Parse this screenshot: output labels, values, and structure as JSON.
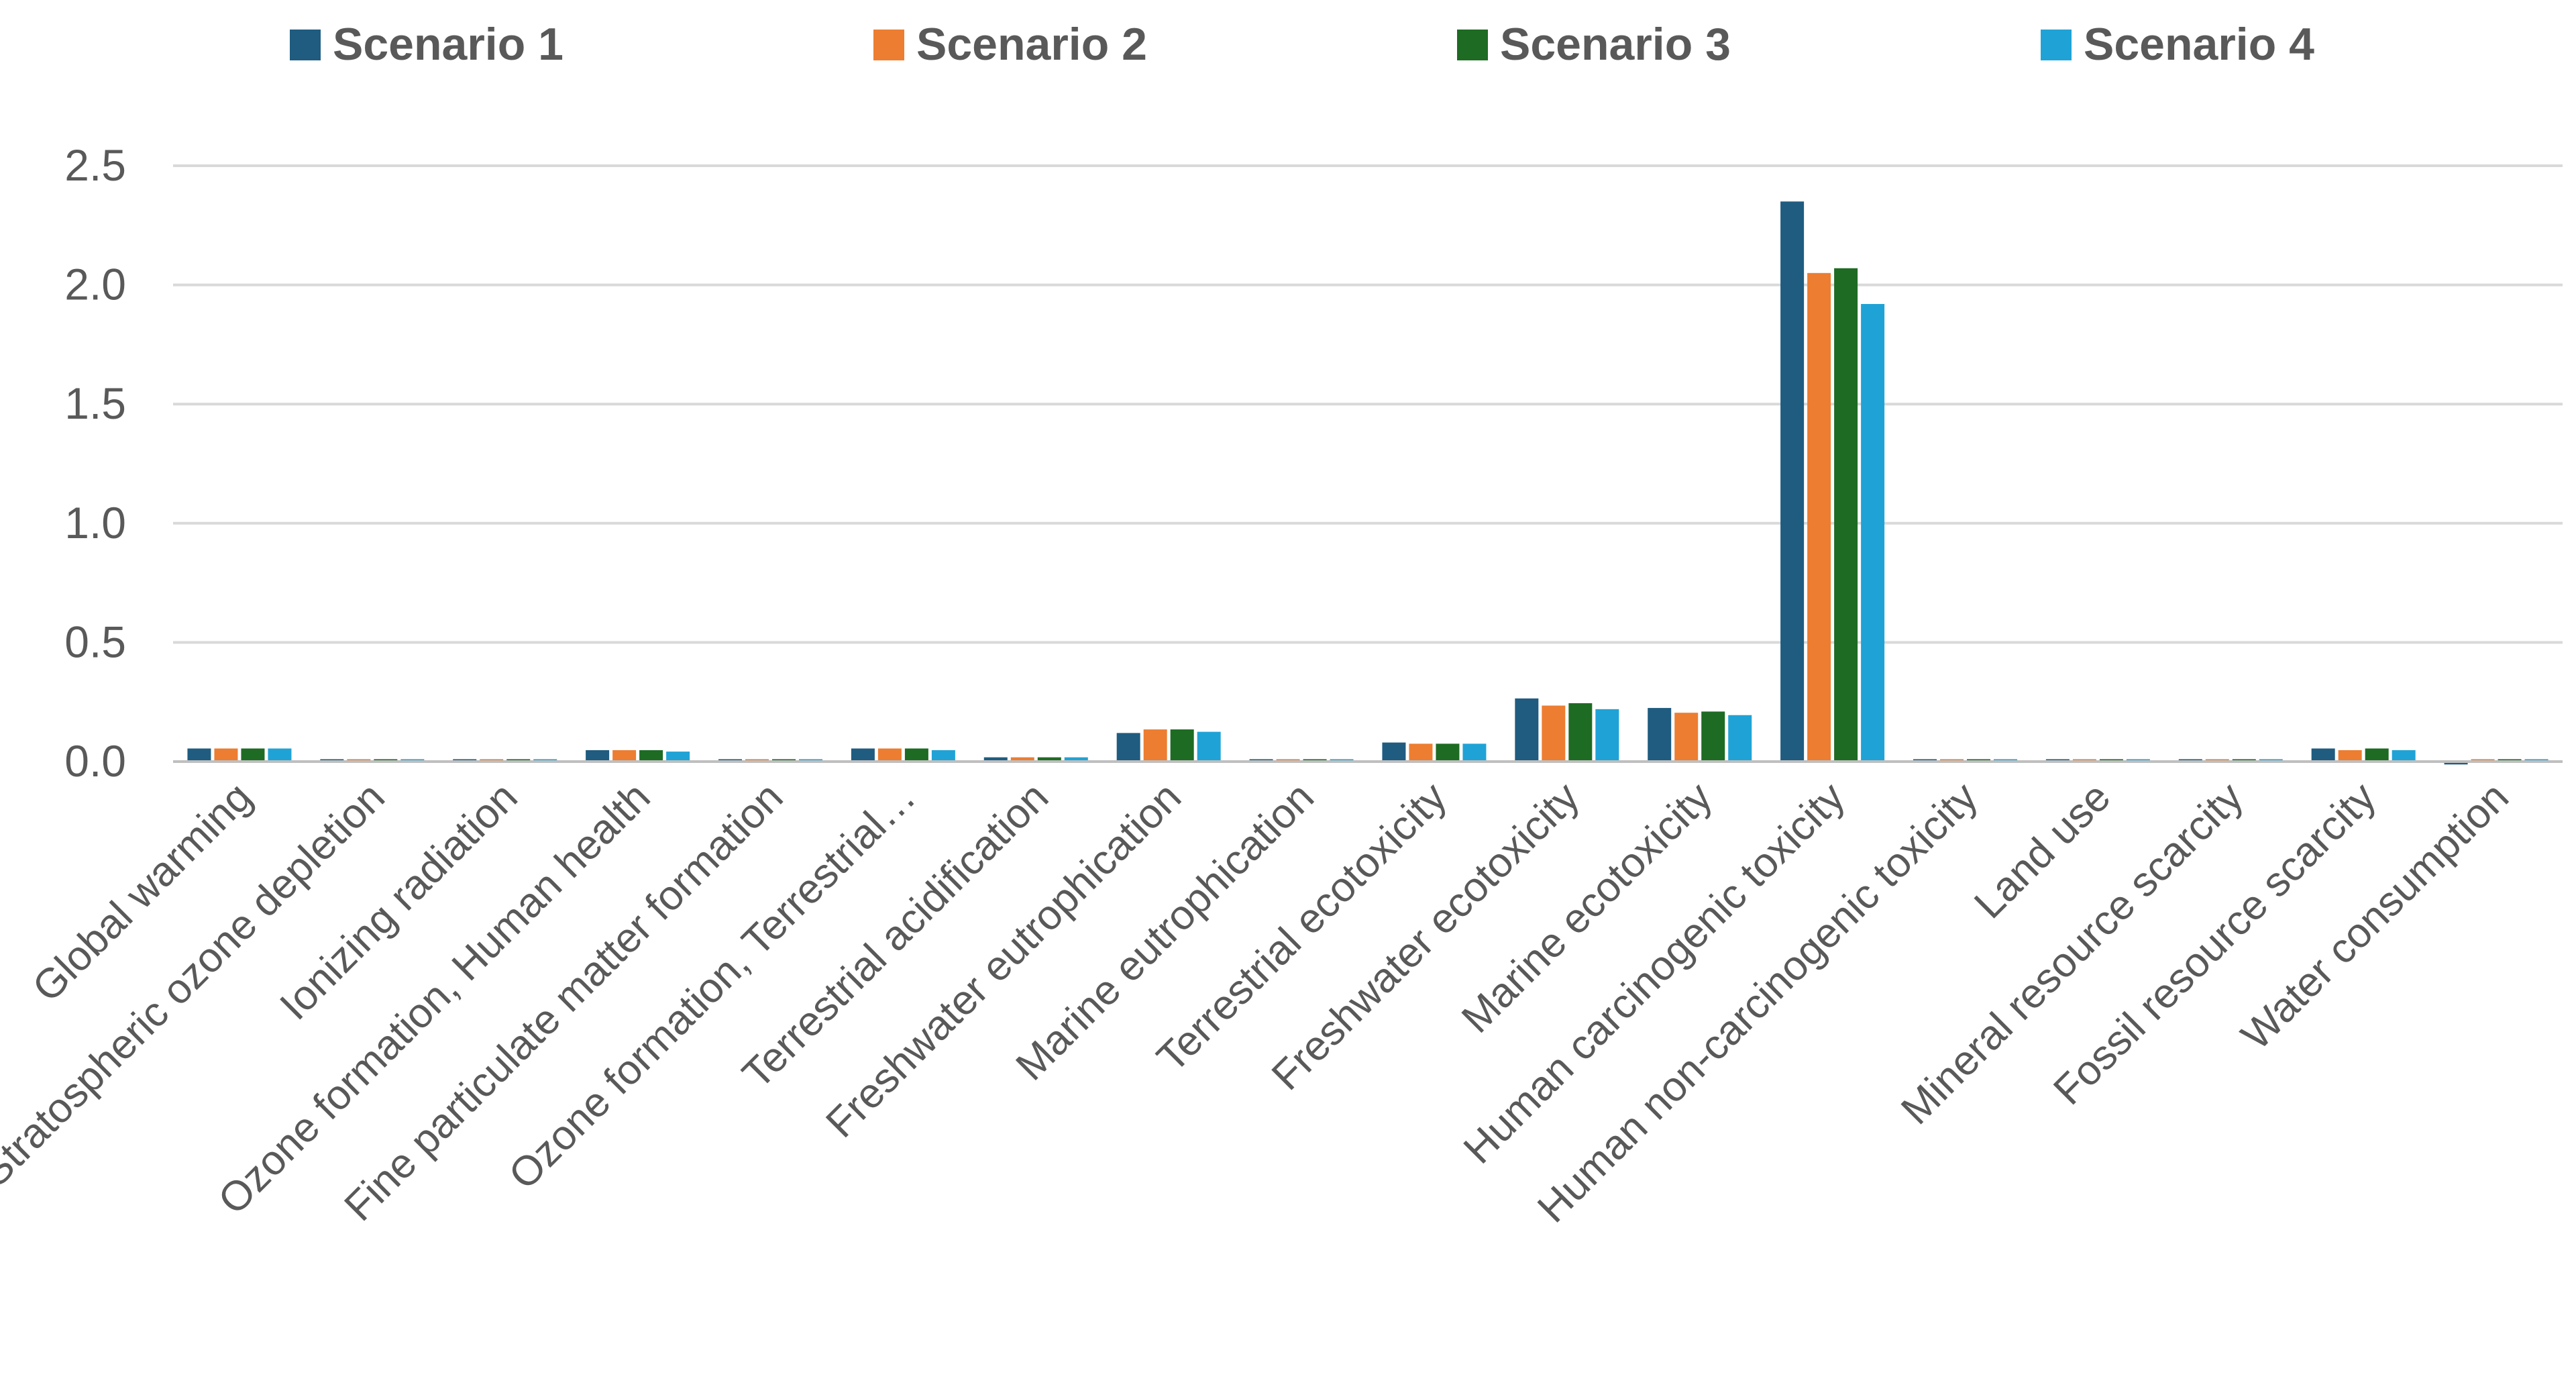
{
  "chart_data": {
    "type": "bar",
    "title": "",
    "xlabel": "",
    "ylabel": "",
    "ylim": [
      0,
      2.5
    ],
    "yticks": [
      "0.0",
      "0.5",
      "1.0",
      "1.5",
      "2.0",
      "2.5"
    ],
    "grid": true,
    "legend_position": "top",
    "categories": [
      "Global warming",
      "Stratospheric ozone depletion",
      "Ionizing radiation",
      "Ozone formation, Human health",
      "Fine particulate matter formation",
      "Ozone formation, Terrestrial…",
      "Terrestrial acidification",
      "Freshwater eutrophication",
      "Marine eutrophication",
      "Terrestrial ecotoxicity",
      "Freshwater ecotoxicity",
      "Marine ecotoxicity",
      "Human carcinogenic toxicity",
      "Human non-carcinogenic toxicity",
      "Land use",
      "Mineral resource scarcity",
      "Fossil resource scarcity",
      "Water consumption"
    ],
    "series": [
      {
        "name": "Scenario 1",
        "color": "#1f5c80",
        "values": [
          0.055,
          0.01,
          0.01,
          0.048,
          0.01,
          0.055,
          0.018,
          0.12,
          0.01,
          0.08,
          0.265,
          0.225,
          2.35,
          0.01,
          0.01,
          0.01,
          0.055,
          -0.012
        ]
      },
      {
        "name": "Scenario 2",
        "color": "#ed7d31",
        "values": [
          0.055,
          0.01,
          0.01,
          0.048,
          0.01,
          0.055,
          0.018,
          0.135,
          0.01,
          0.075,
          0.235,
          0.205,
          2.05,
          0.01,
          0.01,
          0.01,
          0.048,
          0.01
        ]
      },
      {
        "name": "Scenario 3",
        "color": "#1e6b24",
        "values": [
          0.055,
          0.01,
          0.01,
          0.048,
          0.01,
          0.055,
          0.018,
          0.135,
          0.01,
          0.075,
          0.245,
          0.21,
          2.07,
          0.01,
          0.01,
          0.01,
          0.055,
          0.01
        ]
      },
      {
        "name": "Scenario 4",
        "color": "#1fa3d6",
        "values": [
          0.055,
          0.01,
          0.01,
          0.042,
          0.01,
          0.048,
          0.018,
          0.125,
          0.01,
          0.075,
          0.22,
          0.195,
          1.92,
          0.01,
          0.01,
          0.01,
          0.048,
          0.01
        ]
      }
    ]
  }
}
